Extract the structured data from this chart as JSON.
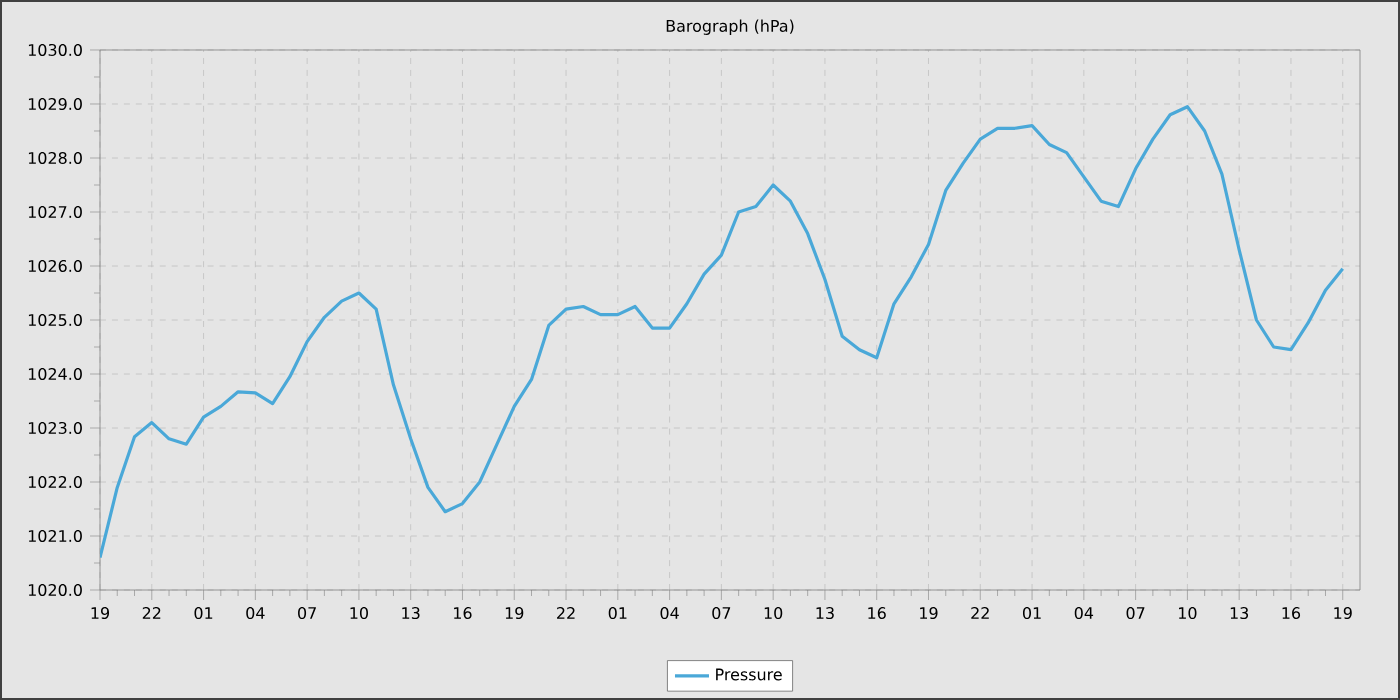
{
  "chart_data": {
    "type": "line",
    "title": "Barograph (hPa)",
    "categories": [
      "19",
      null,
      null,
      "22",
      null,
      null,
      "01",
      null,
      null,
      "04",
      null,
      null,
      "07",
      null,
      null,
      "10",
      null,
      null,
      "13",
      null,
      null,
      "16",
      null,
      null,
      "19",
      null,
      null,
      "22",
      null,
      null,
      "01",
      null,
      null,
      "04",
      null,
      null,
      "07",
      null,
      null,
      "10",
      null,
      null,
      "13",
      null,
      null,
      "16",
      null,
      null,
      "19",
      null,
      null,
      "22",
      null,
      null,
      "01",
      null,
      null,
      "04",
      null,
      null,
      "07",
      null,
      null,
      "10",
      null,
      null,
      "13",
      null,
      null,
      "16",
      null,
      null,
      "19"
    ],
    "series": [
      {
        "name": "Pressure",
        "color": "#4aa8d8",
        "values": [
          1020.6,
          1021.9,
          1022.84,
          1023.1,
          1022.8,
          1022.7,
          1023.2,
          1023.4,
          1023.67,
          1023.65,
          1023.45,
          1023.95,
          1024.6,
          1025.05,
          1025.35,
          1025.5,
          1025.2,
          1023.8,
          1022.8,
          1021.9,
          1021.45,
          1021.6,
          1022.0,
          1022.7,
          1023.4,
          1023.9,
          1024.9,
          1025.2,
          1025.25,
          1025.1,
          1025.1,
          1025.25,
          1024.85,
          1024.85,
          1025.3,
          1025.85,
          1026.2,
          1027.0,
          1027.1,
          1027.5,
          1027.2,
          1026.6,
          1025.75,
          1024.7,
          1024.45,
          1024.3,
          1025.3,
          1025.8,
          1026.4,
          1027.4,
          1027.9,
          1028.35,
          1028.55,
          1028.55,
          1028.6,
          1028.25,
          1028.1,
          1027.65,
          1027.2,
          1027.1,
          1027.8,
          1028.35,
          1028.8,
          1028.95,
          1028.5,
          1027.7,
          1026.3,
          1025.0,
          1024.5,
          1024.45,
          1024.95,
          1025.55,
          1025.95
        ]
      }
    ],
    "ylim": [
      1020,
      1030
    ],
    "yticks": [
      {
        "value": 1020,
        "label": "1020.0"
      },
      {
        "value": 1021,
        "label": "1021.0"
      },
      {
        "value": 1022,
        "label": "1022.0"
      },
      {
        "value": 1023,
        "label": "1023.0"
      },
      {
        "value": 1024,
        "label": "1024.0"
      },
      {
        "value": 1025,
        "label": "1025.0"
      },
      {
        "value": 1026,
        "label": "1026.0"
      },
      {
        "value": 1027,
        "label": "1027.0"
      },
      {
        "value": 1028,
        "label": "1028.0"
      },
      {
        "value": 1029,
        "label": "1029.0"
      },
      {
        "value": 1030,
        "label": "1030.0"
      }
    ],
    "grid": true,
    "legend": "bottom",
    "marker": "none",
    "line_style": "solid"
  }
}
